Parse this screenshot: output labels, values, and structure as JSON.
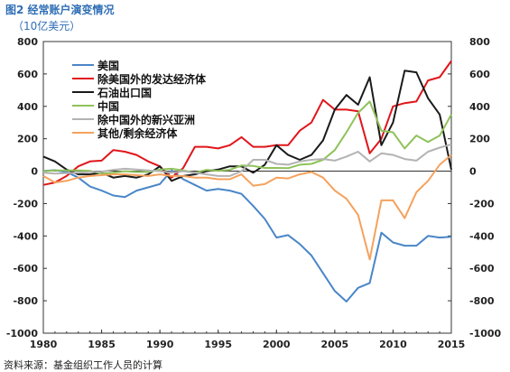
{
  "header": {
    "title": "图2 经常账户演变情况",
    "subtitle": "（10亿美元）"
  },
  "footer": {
    "source": "资料来源：基金组织工作人员的计算"
  },
  "chart_data": {
    "type": "line",
    "title": "图2 经常账户演变情况",
    "subtitle": "（10亿美元）",
    "xlabel": "",
    "ylabel": "",
    "xlim": [
      1980,
      2015
    ],
    "ylim": [
      -1000,
      800
    ],
    "x_ticks": [
      1980,
      1985,
      1990,
      1995,
      2000,
      2005,
      2010,
      2015
    ],
    "y_ticks": [
      -1000,
      -800,
      -600,
      -400,
      -200,
      0,
      200,
      400,
      600,
      800
    ],
    "y_axis_both_sides": true,
    "grid": false,
    "legend_position": "top-left",
    "x": [
      1980,
      1981,
      1982,
      1983,
      1984,
      1985,
      1986,
      1987,
      1988,
      1989,
      1990,
      1991,
      1992,
      1993,
      1994,
      1995,
      1996,
      1997,
      1998,
      1999,
      2000,
      2001,
      2002,
      2003,
      2004,
      2005,
      2006,
      2007,
      2008,
      2009,
      2010,
      2011,
      2012,
      2013,
      2014,
      2015
    ],
    "series": [
      {
        "name": "美国",
        "color": "#4a86c8",
        "values": [
          2,
          6,
          -5,
          -40,
          -95,
          -120,
          -150,
          -160,
          -120,
          -100,
          -80,
          4,
          -50,
          -85,
          -120,
          -110,
          -120,
          -140,
          -215,
          -295,
          -410,
          -395,
          -450,
          -520,
          -630,
          -740,
          -805,
          -720,
          -690,
          -380,
          -440,
          -460,
          -460,
          -400,
          -410,
          -405
        ]
      },
      {
        "name": "除美国外的发达经济体",
        "color": "#e0161b",
        "values": [
          -85,
          -70,
          -30,
          30,
          60,
          65,
          130,
          120,
          100,
          60,
          30,
          -40,
          20,
          150,
          150,
          140,
          160,
          210,
          150,
          150,
          160,
          160,
          250,
          300,
          440,
          380,
          380,
          370,
          110,
          200,
          400,
          420,
          430,
          560,
          580,
          680
        ]
      },
      {
        "name": "石油出口国",
        "color": "#1a1a1a",
        "values": [
          90,
          60,
          10,
          -20,
          -20,
          -10,
          -40,
          -30,
          -40,
          -20,
          30,
          -60,
          -30,
          -20,
          0,
          10,
          30,
          30,
          -10,
          40,
          160,
          100,
          70,
          100,
          190,
          380,
          470,
          410,
          580,
          160,
          300,
          620,
          610,
          450,
          350,
          10
        ]
      },
      {
        "name": "中国",
        "color": "#8fc25a",
        "values": [
          0,
          5,
          5,
          5,
          2,
          -15,
          -10,
          0,
          -5,
          -5,
          10,
          15,
          5,
          -10,
          8,
          2,
          8,
          35,
          32,
          20,
          20,
          18,
          40,
          45,
          70,
          130,
          240,
          360,
          430,
          250,
          240,
          140,
          220,
          180,
          220,
          350
        ]
      },
      {
        "name": "除中国外的新兴亚洲",
        "color": "#b3b3b3",
        "values": [
          -10,
          -15,
          -12,
          -10,
          -5,
          -3,
          8,
          15,
          10,
          5,
          0,
          -10,
          0,
          -10,
          -20,
          -30,
          -30,
          0,
          70,
          70,
          45,
          40,
          60,
          70,
          75,
          65,
          90,
          120,
          60,
          110,
          100,
          75,
          65,
          120,
          145,
          165
        ]
      },
      {
        "name": "其他/剩余经济体",
        "color": "#f5a25d",
        "values": [
          -30,
          -70,
          -60,
          -40,
          -30,
          -25,
          -20,
          -20,
          -25,
          -30,
          -20,
          -30,
          -30,
          -40,
          -40,
          -50,
          -50,
          -20,
          -90,
          -80,
          -40,
          -45,
          -20,
          -5,
          -40,
          -120,
          -170,
          -270,
          -545,
          -180,
          -180,
          -290,
          -130,
          -60,
          40,
          100
        ]
      }
    ]
  }
}
